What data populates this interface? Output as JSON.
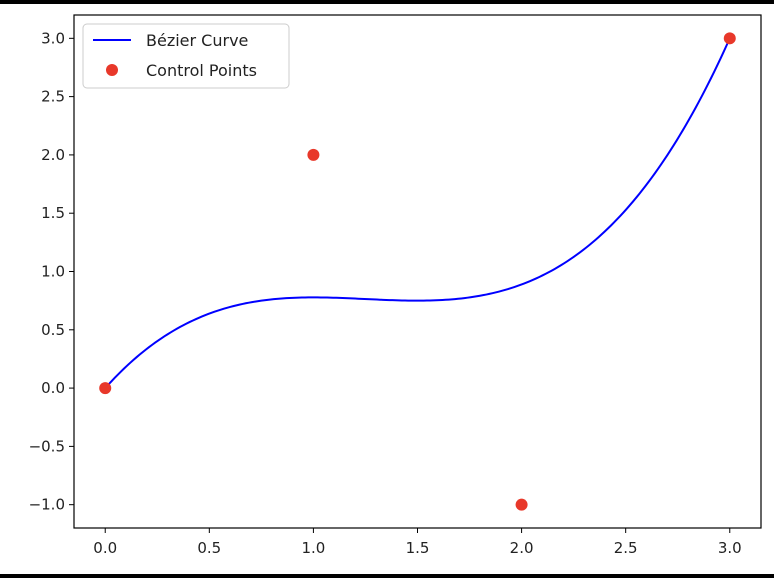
{
  "chart_data": {
    "type": "line",
    "title": "",
    "xlabel": "",
    "ylabel": "",
    "xlim": [
      -0.15,
      3.15
    ],
    "ylim": [
      -1.2,
      3.2
    ],
    "x_ticks": [
      0.0,
      0.5,
      1.0,
      1.5,
      2.0,
      2.5,
      3.0
    ],
    "x_tick_labels": [
      "0.0",
      "0.5",
      "1.0",
      "1.5",
      "2.0",
      "2.5",
      "3.0"
    ],
    "y_ticks": [
      -1.0,
      -0.5,
      0.0,
      0.5,
      1.0,
      1.5,
      2.0,
      2.5,
      3.0
    ],
    "y_tick_labels": [
      "−1.0",
      "−0.5",
      "0.0",
      "0.5",
      "1.0",
      "1.5",
      "2.0",
      "2.5",
      "3.0"
    ],
    "grid": false,
    "legend_position": "top-left",
    "series": [
      {
        "name": "Bézier Curve",
        "kind": "line",
        "color": "#0000ff",
        "control_points": [
          [
            0,
            0
          ],
          [
            1,
            2
          ],
          [
            2,
            -1
          ],
          [
            3,
            3
          ]
        ],
        "x": [
          0.0,
          0.3,
          0.6,
          0.9,
          1.2,
          1.5,
          1.8,
          2.1,
          2.4,
          2.7,
          3.0
        ],
        "y": [
          0.0,
          0.513,
          0.744,
          0.783,
          0.72,
          0.75,
          0.852,
          1.017,
          1.344,
          1.947,
          3.0
        ]
      },
      {
        "name": "Control Points",
        "kind": "scatter",
        "color": "#e8382a",
        "x": [
          0,
          1,
          2,
          3
        ],
        "y": [
          0,
          2,
          -1,
          3
        ]
      }
    ]
  }
}
